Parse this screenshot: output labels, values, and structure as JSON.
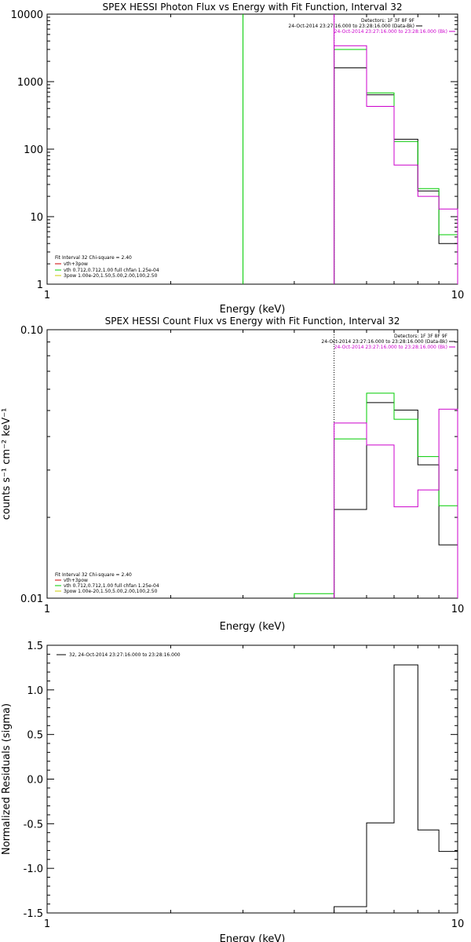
{
  "chart_data": [
    {
      "type": "line",
      "title": "SPEX HESSI Photon Flux vs Energy with Fit Function, Interval 32",
      "xlabel": "Energy (keV)",
      "ylabel": "",
      "xscale": "log",
      "yscale": "log",
      "xlim": [
        1,
        10
      ],
      "ylim": [
        1,
        10000
      ],
      "x_ticks": [
        {
          "v": 1,
          "label": "1"
        },
        {
          "v": 10,
          "label": "10"
        }
      ],
      "y_ticks": [
        {
          "v": 1,
          "label": "1"
        },
        {
          "v": 10,
          "label": "10"
        },
        {
          "v": 100,
          "label": "100"
        },
        {
          "v": 1000,
          "label": "1000"
        },
        {
          "v": 10000,
          "label": "10000"
        }
      ],
      "legend_right": [
        {
          "text": "Detectors: 1F 3F 8F 9F",
          "color": "#000000"
        },
        {
          "text": "24-Oct-2014 23:27:16.000 to 23:28:16.000 (Data-Bk)",
          "color": "#000000"
        },
        {
          "text": "24-Oct-2014 23:27:16.000 to 23:28:16.000 (Bk)",
          "color": "#cc00cc"
        }
      ],
      "legend_left": [
        {
          "text": "Fit Interval 32   Chi-square = 2.40",
          "color": "#000000"
        },
        {
          "text": "vth+3pow",
          "color": "#cc0000"
        },
        {
          "text": "vth 0.712,0.712,1.00  full chfan 1.25e-04",
          "color": "#00cc00"
        },
        {
          "text": "3pow 1.00e-20,1.50,5.00,2.00,100,2.50",
          "color": "#cccc00"
        }
      ],
      "vlines": [
        {
          "x": 3.0,
          "color": "#00cc00",
          "style": "solid"
        },
        {
          "x": 5.0,
          "color": "#000000",
          "style": "dotted"
        },
        {
          "x": 5.0,
          "color": "#cc00cc",
          "style": "solid"
        }
      ],
      "series": [
        {
          "color": "#000000",
          "edges": [
            5.0,
            6.0,
            7.0,
            8.0,
            9.0,
            10.0
          ],
          "values": [
            1600,
            640,
            140,
            24,
            4
          ]
        },
        {
          "color": "#00cc00",
          "edges": [
            5.0,
            6.0,
            7.0,
            8.0,
            9.0,
            10.0
          ],
          "values": [
            3000,
            680,
            130,
            26,
            5.4
          ]
        },
        {
          "color": "#cc00cc",
          "edges": [
            5.0,
            6.0,
            7.0,
            8.0,
            9.0,
            10.0
          ],
          "values": [
            3400,
            430,
            58,
            20,
            13
          ]
        }
      ]
    },
    {
      "type": "line",
      "title": "SPEX HESSI Count Flux vs Energy with Fit Function, Interval 32",
      "xlabel": "Energy (keV)",
      "ylabel": "counts s⁻¹ cm⁻² keV⁻¹",
      "xscale": "log",
      "yscale": "log",
      "xlim": [
        1,
        10
      ],
      "ylim": [
        0.01,
        0.1
      ],
      "x_ticks": [
        {
          "v": 1,
          "label": "1"
        },
        {
          "v": 10,
          "label": "10"
        }
      ],
      "y_ticks": [
        {
          "v": 0.01,
          "label": "0.01"
        },
        {
          "v": 0.1,
          "label": "0.10"
        }
      ],
      "legend_right": [
        {
          "text": "Detectors: 1F 3F 8F 9F",
          "color": "#000000"
        },
        {
          "text": "24-Oct-2014 23:27:16.000 to 23:28:16.000 (Data-Bk)",
          "color": "#000000"
        },
        {
          "text": "24-Oct-2014 23:27:16.000 to 23:28:16.000 (Bk)",
          "color": "#cc00cc"
        }
      ],
      "legend_left": [
        {
          "text": "Fit Interval 32   Chi-square = 2.40",
          "color": "#000000"
        },
        {
          "text": "vth+3pow",
          "color": "#cc0000"
        },
        {
          "text": "vth 0.712,0.712,1.00  full chfan 1.25e-04",
          "color": "#00cc00"
        },
        {
          "text": "3pow 1.00e-20,1.50,5.00,2.00,100,2.50",
          "color": "#cccc00"
        }
      ],
      "vlines": [
        {
          "x": 5.0,
          "color": "#000000",
          "style": "dotted"
        }
      ],
      "series": [
        {
          "color": "#000000",
          "edges": [
            5.0,
            6.0,
            7.0,
            8.0,
            9.0,
            10.0
          ],
          "values": [
            0.0214,
            0.0535,
            0.0502,
            0.0314,
            0.0158
          ]
        },
        {
          "color": "#00cc00",
          "edges": [
            4.0,
            5.0,
            6.0,
            7.0,
            8.0,
            9.0,
            10.0
          ],
          "values": [
            0.0104,
            0.0392,
            0.058,
            0.0464,
            0.0337,
            0.0221
          ]
        },
        {
          "color": "#cc00cc",
          "edges": [
            5.0,
            6.0,
            7.0,
            8.0,
            9.0,
            10.0
          ],
          "values": [
            0.0449,
            0.0372,
            0.0219,
            0.0253,
            0.0506
          ]
        }
      ]
    },
    {
      "type": "line",
      "title": "",
      "xlabel": "Energy (keV)",
      "ylabel": "Normalized Residuals (sigma)",
      "xscale": "log",
      "yscale": "linear",
      "xlim": [
        1,
        10
      ],
      "ylim": [
        -1.5,
        1.5
      ],
      "x_ticks": [
        {
          "v": 1,
          "label": "1"
        },
        {
          "v": 10,
          "label": "10"
        }
      ],
      "y_ticks": [
        {
          "v": -1.5,
          "label": "-1.5"
        },
        {
          "v": -1.0,
          "label": "-1.0"
        },
        {
          "v": -0.5,
          "label": "-0.5"
        },
        {
          "v": 0.0,
          "label": "0.0"
        },
        {
          "v": 0.5,
          "label": "0.5"
        },
        {
          "v": 1.0,
          "label": "1.0"
        },
        {
          "v": 1.5,
          "label": "1.5"
        }
      ],
      "legend_right": [],
      "legend_left": [
        {
          "text": "32, 24-Oct-2014 23:27:16.000 to 23:28:16.000",
          "color": "#000000",
          "line": true
        }
      ],
      "vlines": [],
      "series": [
        {
          "color": "#000000",
          "edges": [
            5.0,
            6.0,
            7.0,
            8.0,
            9.0,
            10.0
          ],
          "values": [
            -1.43,
            -0.49,
            1.28,
            -0.57,
            -0.81
          ]
        }
      ]
    }
  ]
}
